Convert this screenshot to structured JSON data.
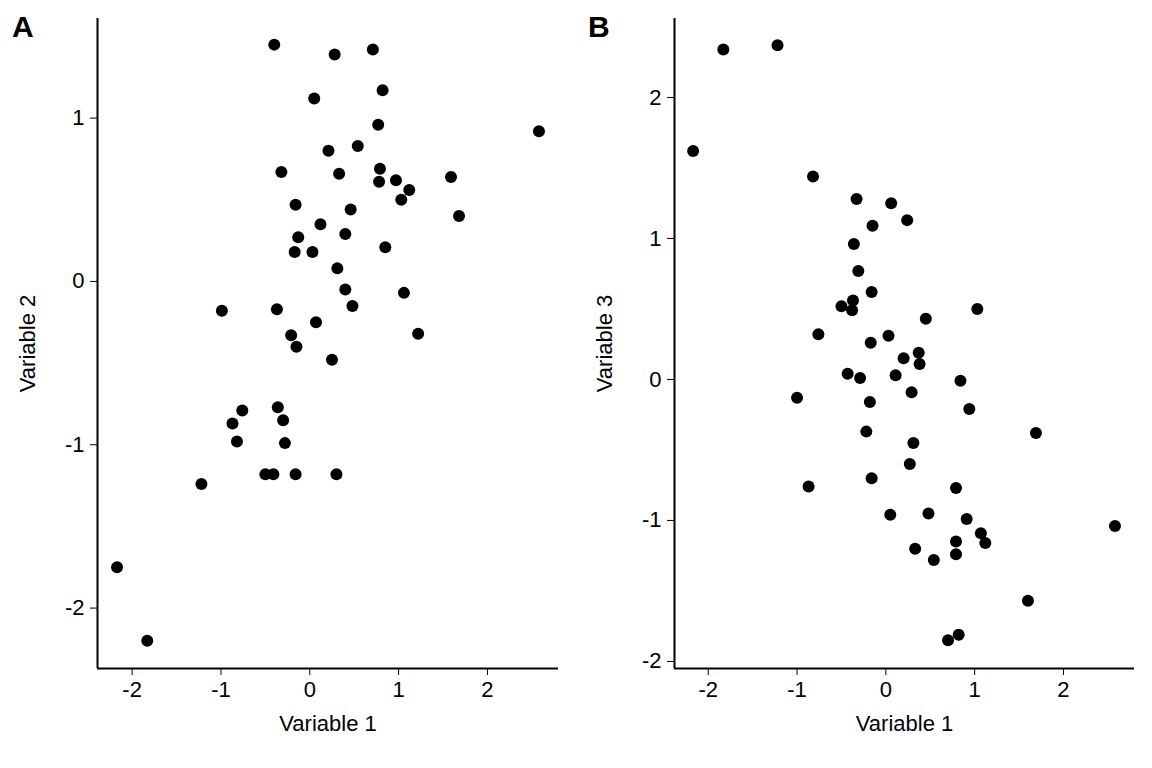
{
  "chart_data": [
    {
      "type": "scatter",
      "title": "A",
      "x_label": "Variable 1",
      "y_label": "Variable 2",
      "color": "#000000",
      "marker": "circle",
      "x": [
        -0.4,
        0.28,
        0.71,
        0.05,
        0.82,
        0.77,
        2.58,
        -0.32,
        0.21,
        0.54,
        0.33,
        0.79,
        0.78,
        0.97,
        1.59,
        1.12,
        1.03,
        1.68,
        -0.16,
        0.46,
        0.12,
        0.4,
        -0.13,
        -0.17,
        0.03,
        0.85,
        0.31,
        0.4,
        0.48,
        1.06,
        -0.99,
        -0.37,
        0.07,
        1.22,
        -0.21,
        -0.15,
        0.25,
        -0.36,
        -0.76,
        -0.3,
        -0.87,
        -0.82,
        -0.28,
        -1.22,
        -0.5,
        -0.41,
        -0.16,
        0.3,
        -2.17,
        -1.83
      ],
      "y": [
        1.45,
        1.39,
        1.42,
        1.12,
        1.17,
        0.96,
        0.92,
        0.67,
        0.8,
        0.83,
        0.66,
        0.69,
        0.61,
        0.62,
        0.64,
        0.56,
        0.5,
        0.4,
        0.47,
        0.44,
        0.35,
        0.29,
        0.27,
        0.18,
        0.18,
        0.21,
        0.08,
        -0.05,
        -0.15,
        -0.07,
        -0.18,
        -0.17,
        -0.25,
        -0.32,
        -0.33,
        -0.4,
        -0.48,
        -0.77,
        -0.79,
        -0.85,
        -0.87,
        -0.98,
        -0.99,
        -1.24,
        -1.18,
        -1.18,
        -1.18,
        -1.18,
        -1.75,
        -2.2
      ],
      "xlim": [
        -2.39,
        2.8
      ],
      "ylim": [
        -2.37,
        1.61
      ],
      "xticks": [
        -2,
        -1,
        0,
        1,
        2
      ],
      "yticks": [
        -2,
        -1,
        0,
        1
      ]
    },
    {
      "type": "scatter",
      "title": "B",
      "x_label": "Variable 1",
      "y_label": "Variable 3",
      "color": "#000000",
      "marker": "circle",
      "x": [
        -1.83,
        -1.22,
        -2.17,
        -0.82,
        -0.33,
        0.06,
        0.24,
        -0.15,
        -0.36,
        -0.31,
        -0.16,
        -0.5,
        -0.37,
        -0.38,
        1.03,
        0.45,
        -0.76,
        0.03,
        -0.17,
        0.2,
        0.37,
        0.38,
        -0.43,
        -0.29,
        0.11,
        0.84,
        -1.0,
        0.29,
        0.94,
        -0.18,
        -0.22,
        1.69,
        0.31,
        0.27,
        -0.16,
        -0.87,
        0.79,
        2.58,
        0.91,
        1.07,
        1.12,
        0.05,
        0.48,
        0.79,
        0.33,
        0.79,
        0.54,
        1.6,
        0.7,
        0.82
      ],
      "y": [
        2.34,
        2.37,
        1.62,
        1.44,
        1.28,
        1.25,
        1.13,
        1.09,
        0.96,
        0.77,
        0.62,
        0.52,
        0.56,
        0.49,
        0.5,
        0.43,
        0.32,
        0.31,
        0.26,
        0.15,
        0.19,
        0.11,
        0.04,
        0.01,
        0.03,
        -0.01,
        -0.13,
        -0.09,
        -0.21,
        -0.16,
        -0.37,
        -0.38,
        -0.45,
        -0.6,
        -0.7,
        -0.76,
        -0.77,
        -1.04,
        -0.99,
        -1.09,
        -1.16,
        -0.96,
        -0.95,
        -1.15,
        -1.2,
        -1.24,
        -1.28,
        -1.57,
        -1.85,
        -1.81
      ],
      "xlim": [
        -2.38,
        2.8
      ],
      "ylim": [
        -2.05,
        2.56
      ],
      "xticks": [
        -2,
        -1,
        0,
        1,
        2
      ],
      "yticks": [
        -2,
        -1,
        0,
        1,
        2
      ]
    }
  ]
}
